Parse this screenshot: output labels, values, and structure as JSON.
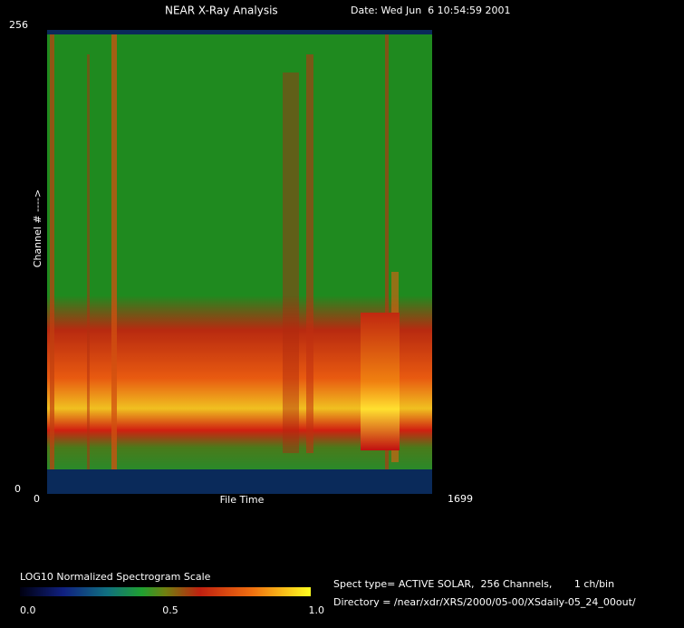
{
  "header": {
    "title": "NEAR X-Ray Analysis",
    "date": "Date: Wed Jun  6 10:54:59 2001"
  },
  "plot": {
    "y_top_label": "256",
    "y_bottom_label": "0",
    "y_axis_title": "Channel # ---->",
    "x_left_label": "0",
    "x_axis_title": "File Time",
    "x_right_label": "1699"
  },
  "colorbar": {
    "title": "LOG10 Normalized Spectrogram Scale",
    "labels": [
      "0.0",
      "0.5",
      "1.0"
    ]
  },
  "info": {
    "spect_type": "Spect type= ACTIVE SOLAR,  256 Channels,       1 ch/bin",
    "directory": "Directory = /near/xdr/XRS/2000/05-00/XSdaily-05_24_00out/"
  }
}
